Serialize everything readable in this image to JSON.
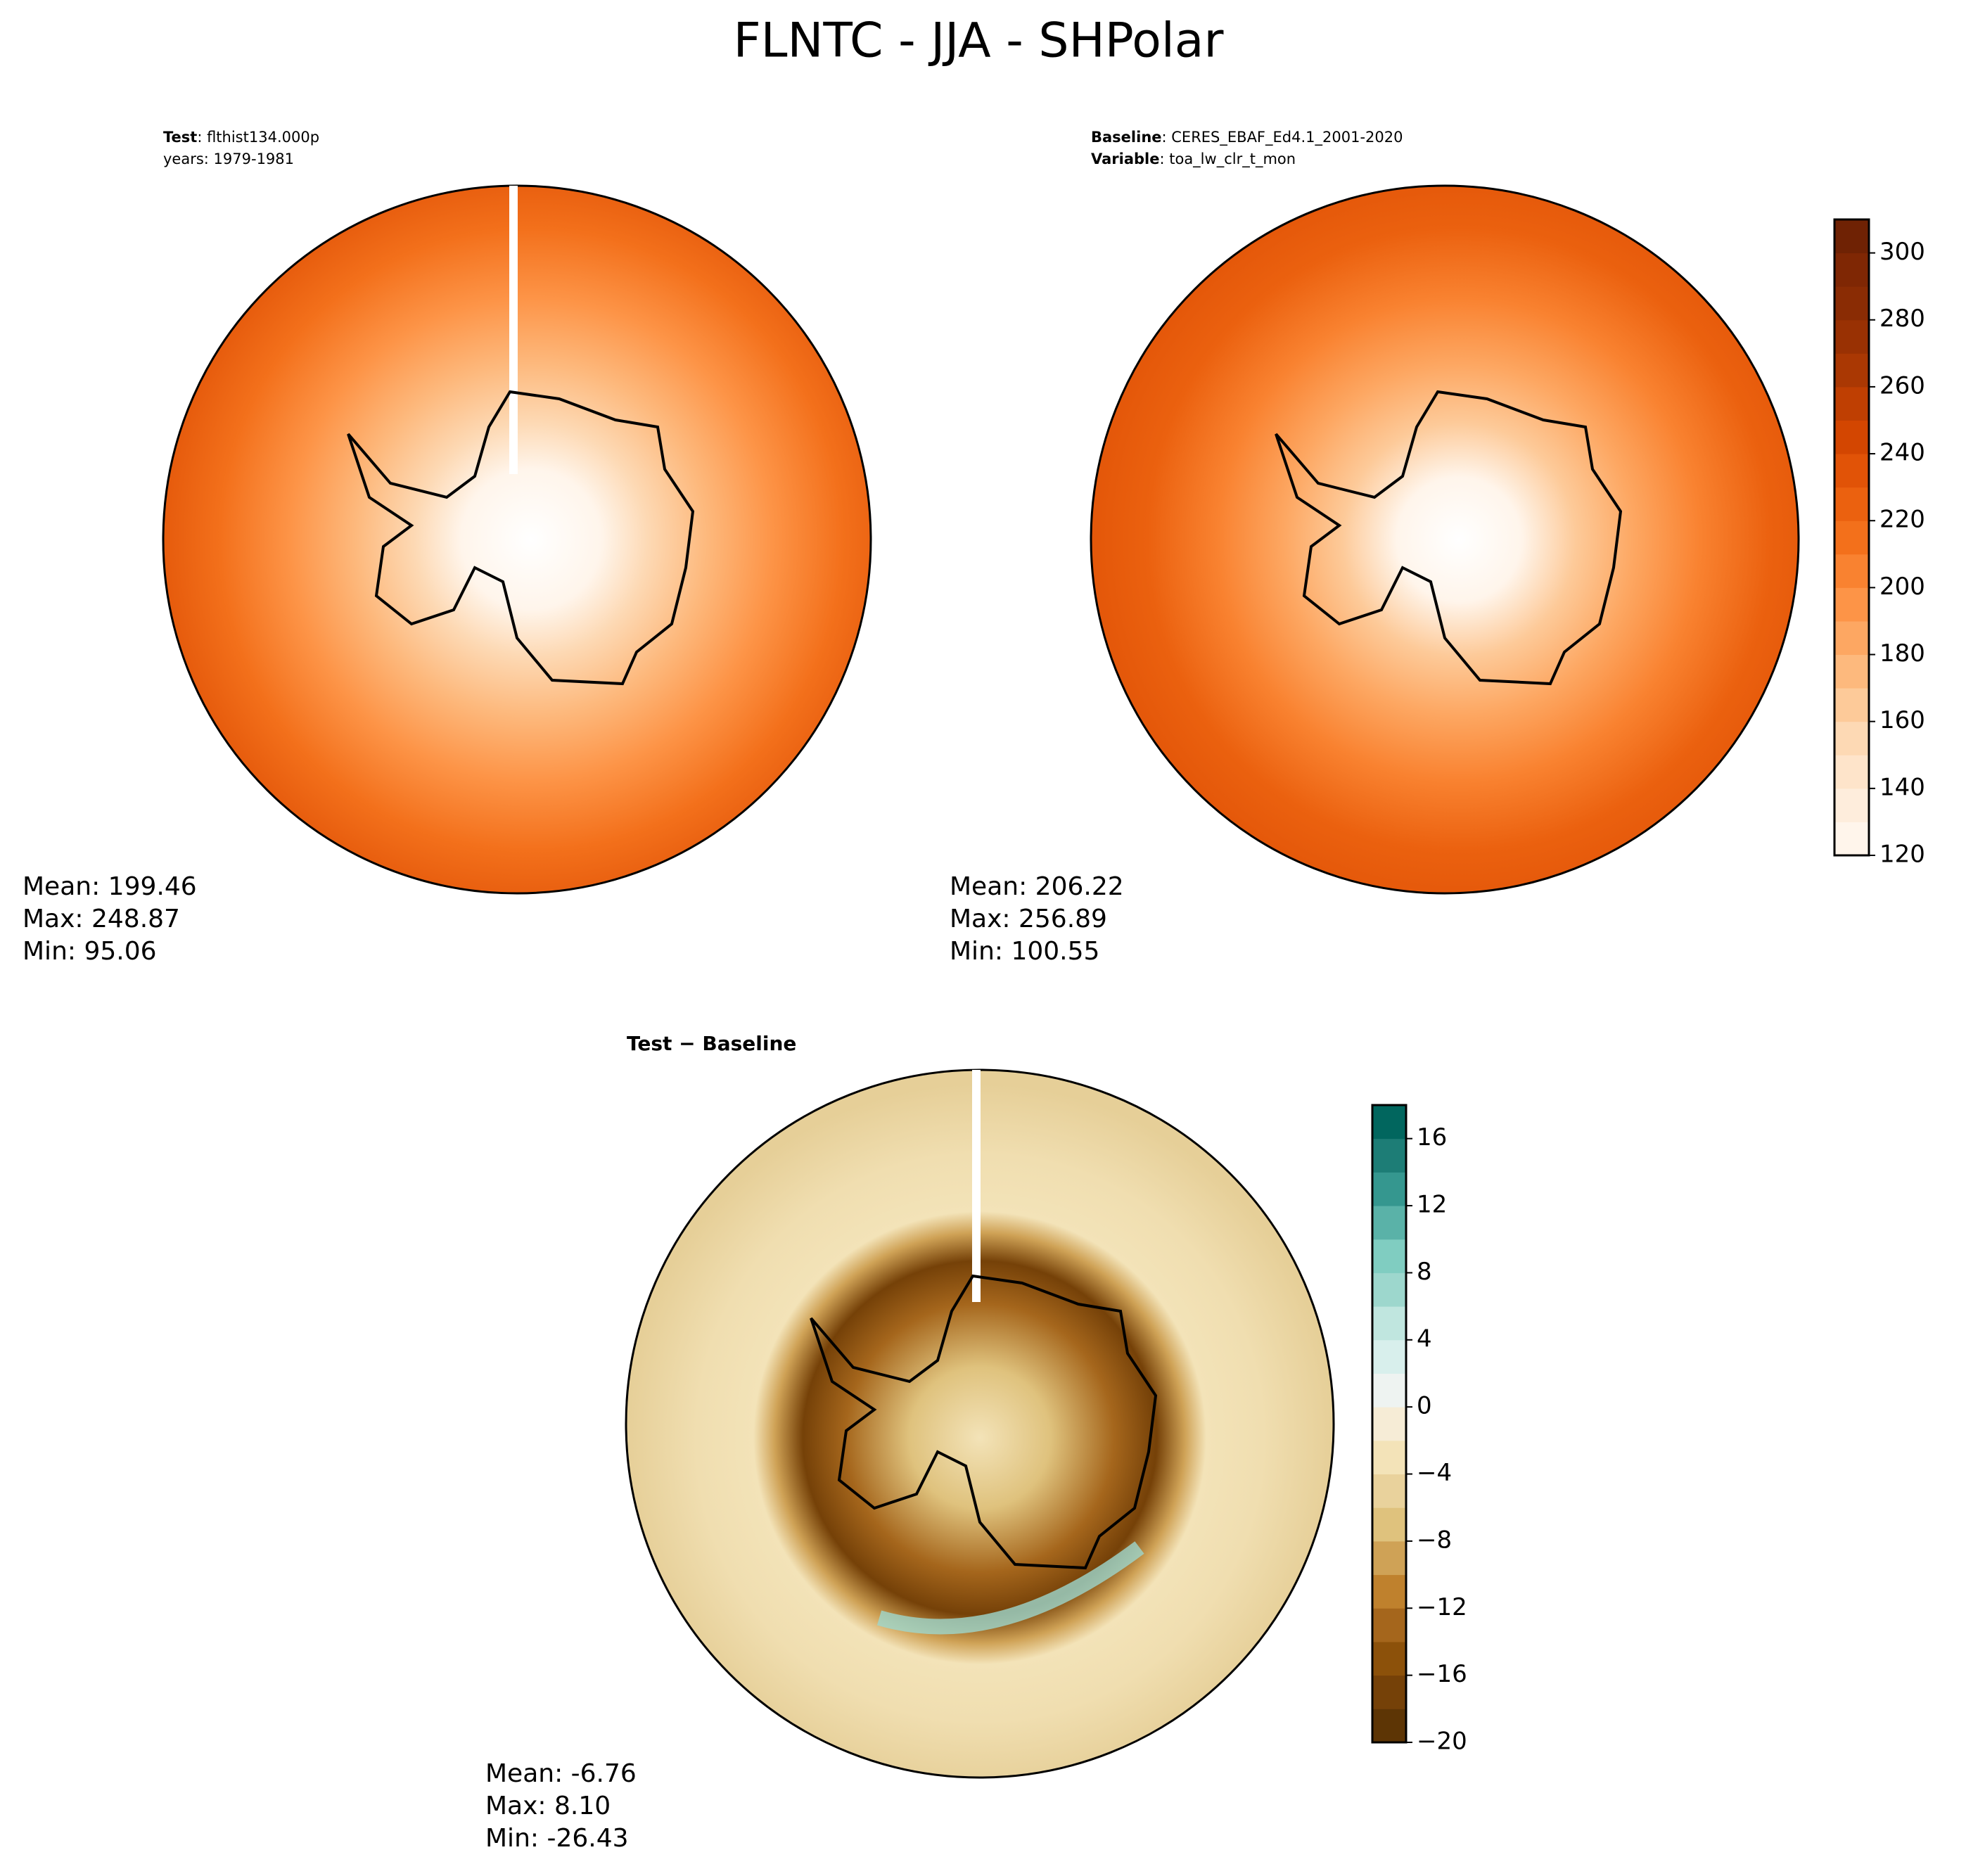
{
  "title": "FLNTC - JJA - SHPolar",
  "panels": [
    {
      "lines": [
        {
          "key": "Test",
          "text": ": flthist134.000p"
        },
        {
          "key": null,
          "text": "years: 1979-1981"
        }
      ],
      "stats": [
        "Mean: 199.46",
        "Max: 248.87",
        "Min: 95.06"
      ]
    },
    {
      "lines": [
        {
          "key": "Baseline",
          "text": ": CERES_EBAF_Ed4.1_2001-2020"
        },
        {
          "key": "Variable",
          "text": ": toa_lw_clr_t_mon"
        }
      ],
      "stats": [
        "Mean: 206.22",
        "Max: 256.89",
        "Min: 100.55"
      ]
    },
    {
      "lines": [
        {
          "key": "Test − Baseline",
          "text": null
        }
      ],
      "stats": [
        "Mean: -6.76",
        "Max:  8.10",
        "Min: -26.43"
      ]
    }
  ],
  "colorbars": [
    {
      "lim": [
        120,
        310
      ],
      "ticks": [
        120,
        140,
        160,
        180,
        200,
        220,
        240,
        260,
        280,
        300
      ],
      "colors": [
        "#fff5eb",
        "#feeddc",
        "#fee4ca",
        "#fdd9b4",
        "#fdca99",
        "#fdb97d",
        "#fda762",
        "#fd9447",
        "#f98230",
        "#f3701b",
        "#eb610f",
        "#e15307",
        "#d34601",
        "#bf3f02",
        "#aa3803",
        "#993103",
        "#8a2c04",
        "#7f2704",
        "#6f2204"
      ]
    },
    {
      "lim": [
        -20,
        18
      ],
      "ticks": [
        {
          "value": -20,
          "label": "−20"
        },
        {
          "value": -16,
          "label": "−16"
        },
        {
          "value": -12,
          "label": "−12"
        },
        {
          "value": -8,
          "label": "−8"
        },
        {
          "value": -4,
          "label": "−4"
        },
        0,
        4,
        8,
        12,
        16
      ],
      "colors": [
        "#5d3505",
        "#754108",
        "#8c510a",
        "#a5661c",
        "#bf812d",
        "#cfa256",
        "#dfc27d",
        "#e9d29c",
        "#f3e3b8",
        "#f6ecd6",
        "#eef3f1",
        "#d8efec",
        "#c0e6df",
        "#9dd7cd",
        "#80cdc1",
        "#5ab2a8",
        "#35978f",
        "#1d7d76",
        "#01665e"
      ]
    }
  ]
}
